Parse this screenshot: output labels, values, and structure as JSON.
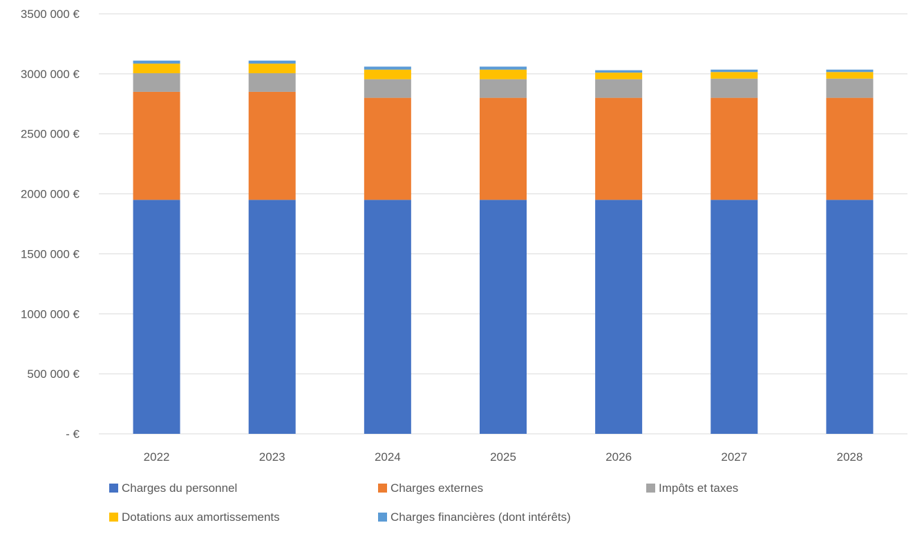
{
  "chart_data": {
    "type": "bar",
    "stacked": true,
    "categories": [
      "2022",
      "2023",
      "2024",
      "2025",
      "2026",
      "2027",
      "2028"
    ],
    "series": [
      {
        "name": "Charges du personnel",
        "color": "#4472C4",
        "values": [
          1950000,
          1950000,
          1950000,
          1950000,
          1950000,
          1950000,
          1950000
        ]
      },
      {
        "name": "Charges externes",
        "color": "#ED7D31",
        "values": [
          900000,
          900000,
          850000,
          850000,
          850000,
          850000,
          850000
        ]
      },
      {
        "name": "Impôts et taxes",
        "color": "#A5A5A5",
        "values": [
          155000,
          155000,
          155000,
          155000,
          155000,
          160000,
          160000
        ]
      },
      {
        "name": "Dotations aux amortissements",
        "color": "#FFC000",
        "values": [
          80000,
          80000,
          80000,
          80000,
          55000,
          55000,
          55000
        ]
      },
      {
        "name": "Charges financières (dont intérêts)",
        "color": "#5B9BD5",
        "values": [
          25000,
          25000,
          25000,
          25000,
          20000,
          20000,
          20000
        ]
      }
    ],
    "yticks": [
      "-  €",
      "500 000 €",
      "1000 000 €",
      "1500 000 €",
      "2000 000 €",
      "2500 000 €",
      "3000 000 €",
      "3500 000 €"
    ],
    "ylim": [
      0,
      3500000
    ],
    "grid": true,
    "legend_position": "bottom"
  }
}
